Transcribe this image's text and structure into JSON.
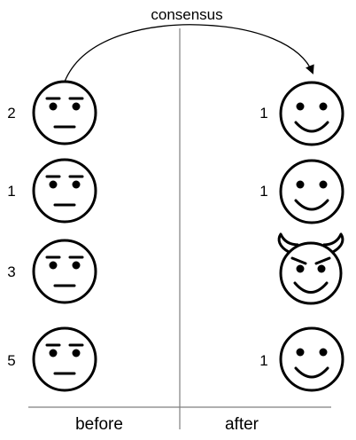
{
  "arrow_label": "consensus",
  "columns": {
    "before": "before",
    "after": "after"
  },
  "before_faces": [
    {
      "label": "2",
      "expression": "neutral-face-icon"
    },
    {
      "label": "1",
      "expression": "neutral-face-icon"
    },
    {
      "label": "3",
      "expression": "neutral-face-icon"
    },
    {
      "label": "5",
      "expression": "neutral-face-icon"
    }
  ],
  "after_faces": [
    {
      "label": "1",
      "expression": "smiling-face-icon"
    },
    {
      "label": "1",
      "expression": "smiling-face-icon"
    },
    {
      "label": "",
      "expression": "smiling-devil-face-icon"
    },
    {
      "label": "1",
      "expression": "smiling-face-icon"
    }
  ],
  "colors": {
    "line": "#000000",
    "divider": "#7f7f7f",
    "background": "#ffffff"
  }
}
